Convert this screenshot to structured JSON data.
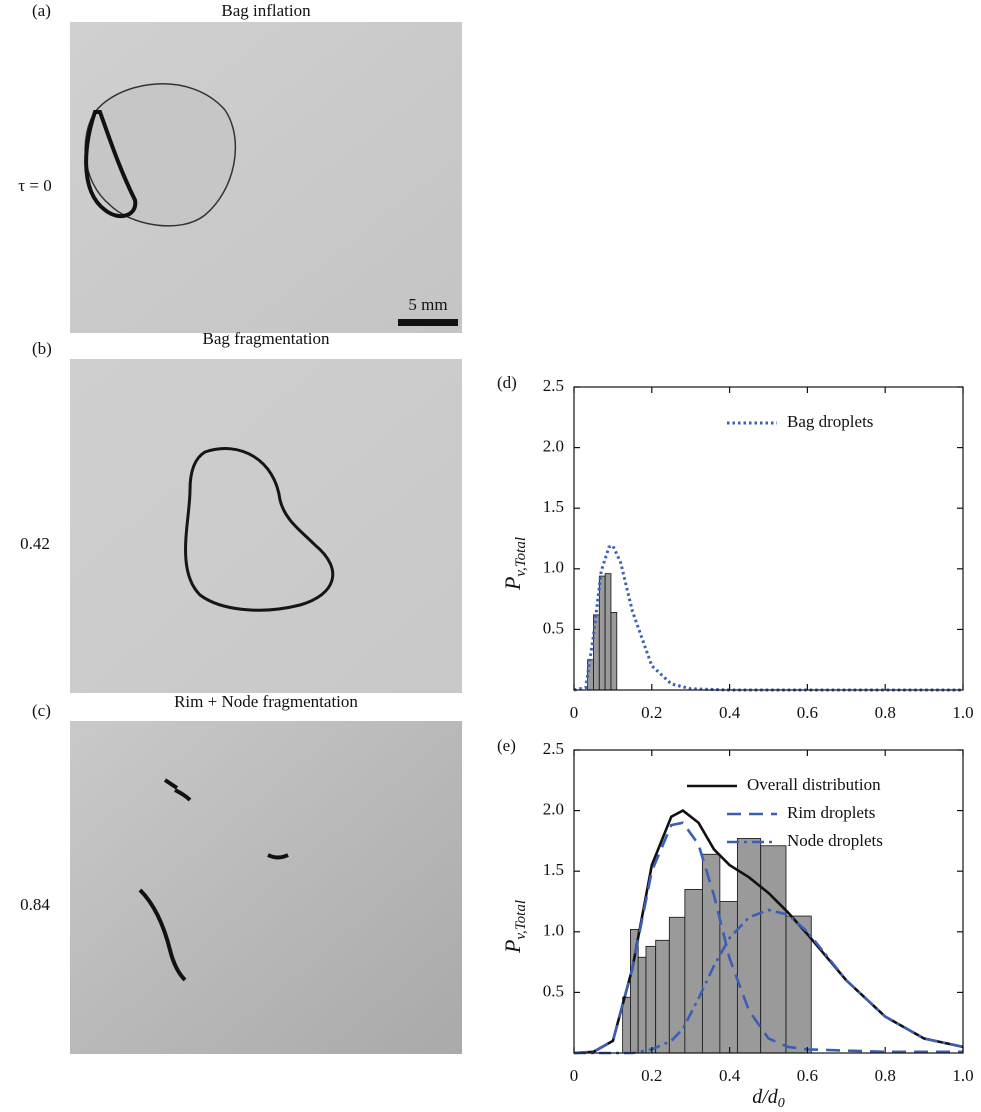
{
  "panels": [
    {
      "label": "(a)",
      "title": "Bag inflation",
      "time": "τ = 0",
      "scale_bar": "5 mm"
    },
    {
      "label": "(b)",
      "title": "Bag fragmentation",
      "time": "0.42"
    },
    {
      "label": "(c)",
      "title": "Rim + Node fragmentation",
      "time": "0.84"
    }
  ],
  "chart_data": [
    {
      "type": "histogram",
      "label": "(d)",
      "ylabel": "P",
      "ylabel_sub": "v,Total",
      "bins": [
        0.035,
        0.05,
        0.065,
        0.08,
        0.095,
        0.11
      ],
      "counts": [
        0.25,
        0.62,
        0.94,
        0.96,
        0.64
      ],
      "bar_color": "#9a9a9a",
      "xlim": [
        0,
        1
      ],
      "ylim": [
        0,
        2.5
      ],
      "xticks": [
        0,
        0.2,
        0.4,
        0.6,
        0.8,
        {
          "value": 1,
          "label": "1.0"
        }
      ],
      "yticks": [
        0.5,
        {
          "value": 1,
          "label": "1.0"
        },
        1.5,
        {
          "value": 2,
          "label": "2.0"
        },
        2.5
      ],
      "legend": "upper right",
      "series": [
        {
          "name": "Bag droplets",
          "color": "#3a5fb5",
          "dash": "dotted",
          "x": [
            0,
            0.03,
            0.05,
            0.07,
            0.09,
            0.1,
            0.12,
            0.15,
            0.2,
            0.25,
            0.3,
            0.4,
            0.6,
            0.8,
            1
          ],
          "values": [
            0,
            0.02,
            0.45,
            0.98,
            1.18,
            1.19,
            1.05,
            0.65,
            0.2,
            0.05,
            0.01,
            0,
            0,
            0,
            0
          ]
        }
      ]
    },
    {
      "type": "histogram",
      "label": "(e)",
      "ylabel": "P",
      "ylabel_sub": "v,Total",
      "xlabel": "d/d",
      "xlabel_sub": "0",
      "bins": [
        0.125,
        0.145,
        0.165,
        0.185,
        0.21,
        0.245,
        0.285,
        0.33,
        0.375,
        0.42,
        0.48,
        0.545,
        0.61
      ],
      "counts": [
        0.46,
        1.02,
        0.79,
        0.88,
        0.93,
        1.12,
        1.35,
        1.64,
        1.25,
        1.77,
        1.71,
        1.13
      ],
      "bar_color": "#9a9a9a",
      "xlim": [
        0,
        1
      ],
      "ylim": [
        0,
        2.5
      ],
      "xticks": [
        0,
        0.2,
        0.4,
        0.6,
        0.8,
        {
          "value": 1,
          "label": "1.0"
        }
      ],
      "yticks": [
        0.5,
        {
          "value": 1,
          "label": "1.0"
        },
        1.5,
        {
          "value": 2,
          "label": "2.0"
        },
        2.5
      ],
      "legend": "upper right",
      "series": [
        {
          "name": "Overall distribution",
          "color": "#111111",
          "dash": "solid",
          "x": [
            0,
            0.05,
            0.1,
            0.15,
            0.2,
            0.25,
            0.28,
            0.32,
            0.36,
            0.4,
            0.45,
            0.5,
            0.55,
            0.6,
            0.7,
            0.8,
            0.9,
            1
          ],
          "values": [
            0,
            0.01,
            0.1,
            0.7,
            1.55,
            1.95,
            2.0,
            1.9,
            1.68,
            1.55,
            1.45,
            1.32,
            1.16,
            0.98,
            0.6,
            0.3,
            0.12,
            0.05
          ]
        },
        {
          "name": "Rim droplets",
          "color": "#3a5fb5",
          "dash": "dashed",
          "x": [
            0,
            0.05,
            0.1,
            0.15,
            0.2,
            0.25,
            0.28,
            0.32,
            0.36,
            0.4,
            0.45,
            0.5,
            0.55,
            0.6,
            0.7,
            0.8,
            0.9,
            1
          ],
          "values": [
            0,
            0.01,
            0.1,
            0.7,
            1.5,
            1.88,
            1.9,
            1.72,
            1.3,
            0.78,
            0.35,
            0.12,
            0.05,
            0.03,
            0.02,
            0.01,
            0.01,
            0.01
          ]
        },
        {
          "name": "Node droplets",
          "color": "#3a5fb5",
          "dash": "dashdot",
          "x": [
            0,
            0.05,
            0.1,
            0.15,
            0.2,
            0.25,
            0.28,
            0.32,
            0.36,
            0.4,
            0.45,
            0.5,
            0.55,
            0.6,
            0.7,
            0.8,
            0.9,
            1
          ],
          "values": [
            0,
            0,
            0,
            0,
            0.03,
            0.1,
            0.2,
            0.45,
            0.72,
            0.95,
            1.12,
            1.18,
            1.14,
            1.0,
            0.6,
            0.3,
            0.12,
            0.05
          ]
        }
      ]
    }
  ]
}
